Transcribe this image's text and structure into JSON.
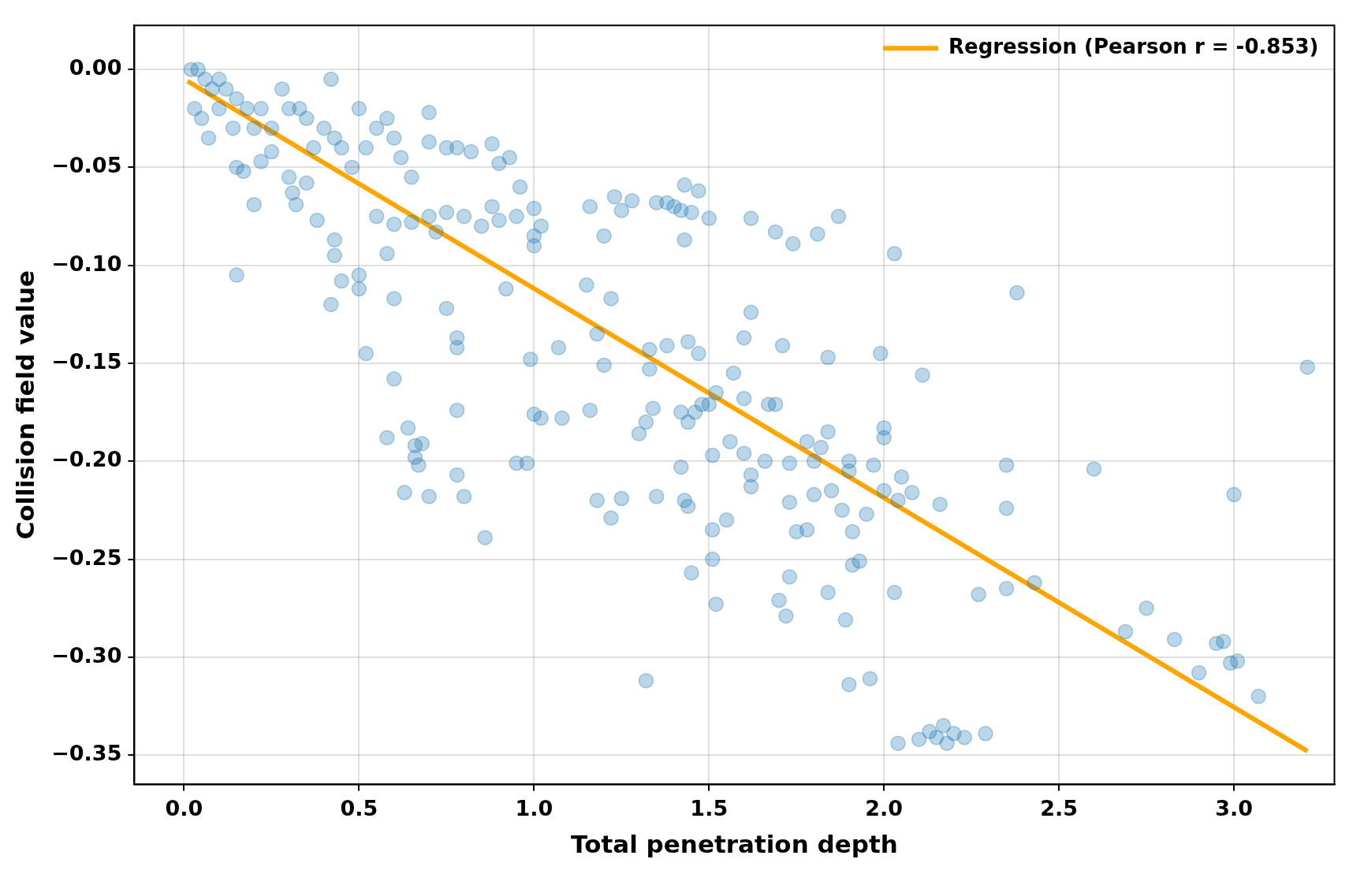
{
  "chart_data": {
    "type": "scatter",
    "xlabel": "Total penetration depth",
    "ylabel": "Collision field value",
    "xlim": [
      -0.142,
      3.287
    ],
    "ylim": [
      -0.365,
      0.0225
    ],
    "xticks": [
      {
        "value": 0,
        "label": "0.0"
      },
      {
        "value": 0.5,
        "label": "0.5"
      },
      {
        "value": 1,
        "label": "1.0"
      },
      {
        "value": 1.5,
        "label": "1.5"
      },
      {
        "value": 2,
        "label": "2.0"
      },
      {
        "value": 2.5,
        "label": "2.5"
      },
      {
        "value": 3,
        "label": "3.0"
      }
    ],
    "yticks": [
      {
        "value": 0,
        "label": "0.00"
      },
      {
        "value": -0.05,
        "label": "−0.05"
      },
      {
        "value": -0.1,
        "label": "−0.10"
      },
      {
        "value": -0.15,
        "label": "−0.15"
      },
      {
        "value": -0.2,
        "label": "−0.20"
      },
      {
        "value": -0.25,
        "label": "−0.25"
      },
      {
        "value": -0.3,
        "label": "−0.30"
      },
      {
        "value": -0.35,
        "label": "−0.35"
      }
    ],
    "grid": true,
    "legend": "top right",
    "marker": "circle",
    "series": [
      {
        "color": "#1f77b4",
        "x": [
          0.02,
          0.04,
          0.06,
          0.08,
          0.1,
          0.12,
          0.03,
          0.05,
          0.1,
          0.15,
          0.18,
          0.22,
          0.25,
          0.3,
          0.33,
          0.35,
          0.28,
          0.2,
          0.14,
          0.07,
          0.15,
          0.17,
          0.2,
          0.22,
          0.25,
          0.3,
          0.31,
          0.32,
          0.35,
          0.37,
          0.38,
          0.4,
          0.42,
          0.43,
          0.45,
          0.48,
          0.5,
          0.52,
          0.55,
          0.58,
          0.6,
          0.62,
          0.65,
          0.7,
          0.7,
          0.75,
          0.78,
          0.82,
          0.88,
          0.9,
          0.93,
          0.96,
          0.15,
          0.43,
          0.43,
          0.45,
          0.42,
          0.5,
          0.5,
          0.58,
          0.6,
          0.55,
          0.6,
          0.65,
          0.7,
          0.72,
          0.75,
          0.8,
          0.85,
          0.88,
          0.9,
          0.95,
          1.0,
          1.0,
          1.0,
          1.02,
          0.92,
          0.75,
          0.78,
          0.78,
          0.52,
          0.6,
          0.58,
          0.64,
          0.66,
          0.66,
          0.67,
          0.68,
          0.78,
          0.63,
          0.7,
          0.78,
          0.8,
          0.86,
          0.95,
          0.98,
          1.0,
          1.02,
          0.99,
          1.07,
          1.08,
          1.15,
          1.16,
          1.2,
          1.22,
          1.18,
          1.2,
          1.16,
          1.18,
          1.22,
          1.25,
          1.23,
          1.25,
          1.28,
          1.3,
          1.32,
          1.33,
          1.33,
          1.34,
          1.35,
          1.32,
          1.35,
          1.38,
          1.4,
          1.42,
          1.43,
          1.45,
          1.47,
          1.5,
          1.38,
          1.44,
          1.47,
          1.43,
          1.42,
          1.44,
          1.46,
          1.48,
          1.42,
          1.43,
          1.44,
          1.45,
          1.5,
          1.52,
          1.51,
          1.51,
          1.51,
          1.52,
          1.55,
          1.56,
          1.57,
          1.6,
          1.6,
          1.62,
          1.6,
          1.62,
          1.62,
          1.62,
          1.66,
          1.67,
          1.69,
          1.69,
          1.7,
          1.71,
          1.72,
          1.73,
          1.73,
          1.74,
          1.73,
          1.75,
          1.78,
          1.78,
          1.8,
          1.8,
          1.81,
          1.82,
          1.84,
          1.84,
          1.84,
          1.85,
          1.87,
          1.88,
          1.89,
          1.9,
          1.9,
          1.9,
          1.91,
          1.91,
          1.93,
          1.95,
          1.96,
          1.97,
          1.99,
          2.0,
          2.0,
          2.0,
          2.03,
          2.03,
          2.04,
          2.04,
          2.05,
          2.08,
          2.11,
          2.1,
          2.13,
          2.15,
          2.16,
          2.17,
          2.18,
          2.2,
          2.23,
          2.27,
          2.29,
          2.35,
          2.35,
          2.35,
          2.38,
          2.43,
          2.6,
          2.69,
          2.75,
          2.83,
          2.9,
          2.95,
          2.97,
          2.99,
          3.0,
          3.01,
          3.07,
          3.21
        ],
        "values": [
          0.0,
          0.0,
          -0.005,
          -0.01,
          -0.005,
          -0.01,
          -0.02,
          -0.025,
          -0.02,
          -0.015,
          -0.02,
          -0.02,
          -0.03,
          -0.02,
          -0.02,
          -0.025,
          -0.01,
          -0.03,
          -0.03,
          -0.035,
          -0.05,
          -0.052,
          -0.069,
          -0.047,
          -0.042,
          -0.055,
          -0.063,
          -0.069,
          -0.058,
          -0.04,
          -0.077,
          -0.03,
          -0.005,
          -0.035,
          -0.04,
          -0.05,
          -0.02,
          -0.04,
          -0.03,
          -0.025,
          -0.035,
          -0.045,
          -0.055,
          -0.022,
          -0.037,
          -0.04,
          -0.04,
          -0.042,
          -0.038,
          -0.048,
          -0.045,
          -0.06,
          -0.105,
          -0.087,
          -0.095,
          -0.108,
          -0.12,
          -0.105,
          -0.112,
          -0.094,
          -0.117,
          -0.075,
          -0.079,
          -0.078,
          -0.075,
          -0.083,
          -0.073,
          -0.075,
          -0.08,
          -0.07,
          -0.077,
          -0.075,
          -0.071,
          -0.085,
          -0.09,
          -0.08,
          -0.112,
          -0.122,
          -0.137,
          -0.142,
          -0.145,
          -0.158,
          -0.188,
          -0.183,
          -0.192,
          -0.198,
          -0.202,
          -0.191,
          -0.174,
          -0.216,
          -0.218,
          -0.207,
          -0.218,
          -0.239,
          -0.201,
          -0.201,
          -0.176,
          -0.178,
          -0.148,
          -0.142,
          -0.178,
          -0.11,
          -0.07,
          -0.085,
          -0.117,
          -0.135,
          -0.151,
          -0.174,
          -0.22,
          -0.229,
          -0.219,
          -0.065,
          -0.072,
          -0.067,
          -0.186,
          -0.18,
          -0.143,
          -0.153,
          -0.173,
          -0.218,
          -0.312,
          -0.068,
          -0.068,
          -0.07,
          -0.072,
          -0.059,
          -0.073,
          -0.062,
          -0.076,
          -0.141,
          -0.139,
          -0.145,
          -0.087,
          -0.175,
          -0.18,
          -0.175,
          -0.171,
          -0.203,
          -0.22,
          -0.223,
          -0.257,
          -0.171,
          -0.165,
          -0.197,
          -0.235,
          -0.25,
          -0.273,
          -0.23,
          -0.19,
          -0.155,
          -0.168,
          -0.137,
          -0.124,
          -0.196,
          -0.207,
          -0.213,
          -0.076,
          -0.2,
          -0.171,
          -0.171,
          -0.083,
          -0.271,
          -0.141,
          -0.279,
          -0.201,
          -0.221,
          -0.089,
          -0.259,
          -0.236,
          -0.235,
          -0.19,
          -0.2,
          -0.217,
          -0.084,
          -0.193,
          -0.185,
          -0.147,
          -0.267,
          -0.215,
          -0.075,
          -0.225,
          -0.281,
          -0.2,
          -0.205,
          -0.314,
          -0.236,
          -0.253,
          -0.251,
          -0.227,
          -0.311,
          -0.202,
          -0.145,
          -0.183,
          -0.188,
          -0.215,
          -0.094,
          -0.267,
          -0.22,
          -0.344,
          -0.208,
          -0.216,
          -0.156,
          -0.342,
          -0.338,
          -0.341,
          -0.222,
          -0.335,
          -0.344,
          -0.339,
          -0.341,
          -0.268,
          -0.339,
          -0.202,
          -0.224,
          -0.265,
          -0.114,
          -0.262,
          -0.204,
          -0.287,
          -0.275,
          -0.291,
          -0.308,
          -0.293,
          -0.292,
          -0.303,
          -0.217,
          -0.302,
          -0.32,
          -0.152
        ]
      },
      {
        "type": "line",
        "name": "Regression (Pearson r = -0.853)",
        "color": "#ffa500",
        "marker": "none",
        "line_style": "solid",
        "x": [
          0.01,
          3.21
        ],
        "values": [
          -0.006,
          -0.348
        ]
      }
    ]
  }
}
